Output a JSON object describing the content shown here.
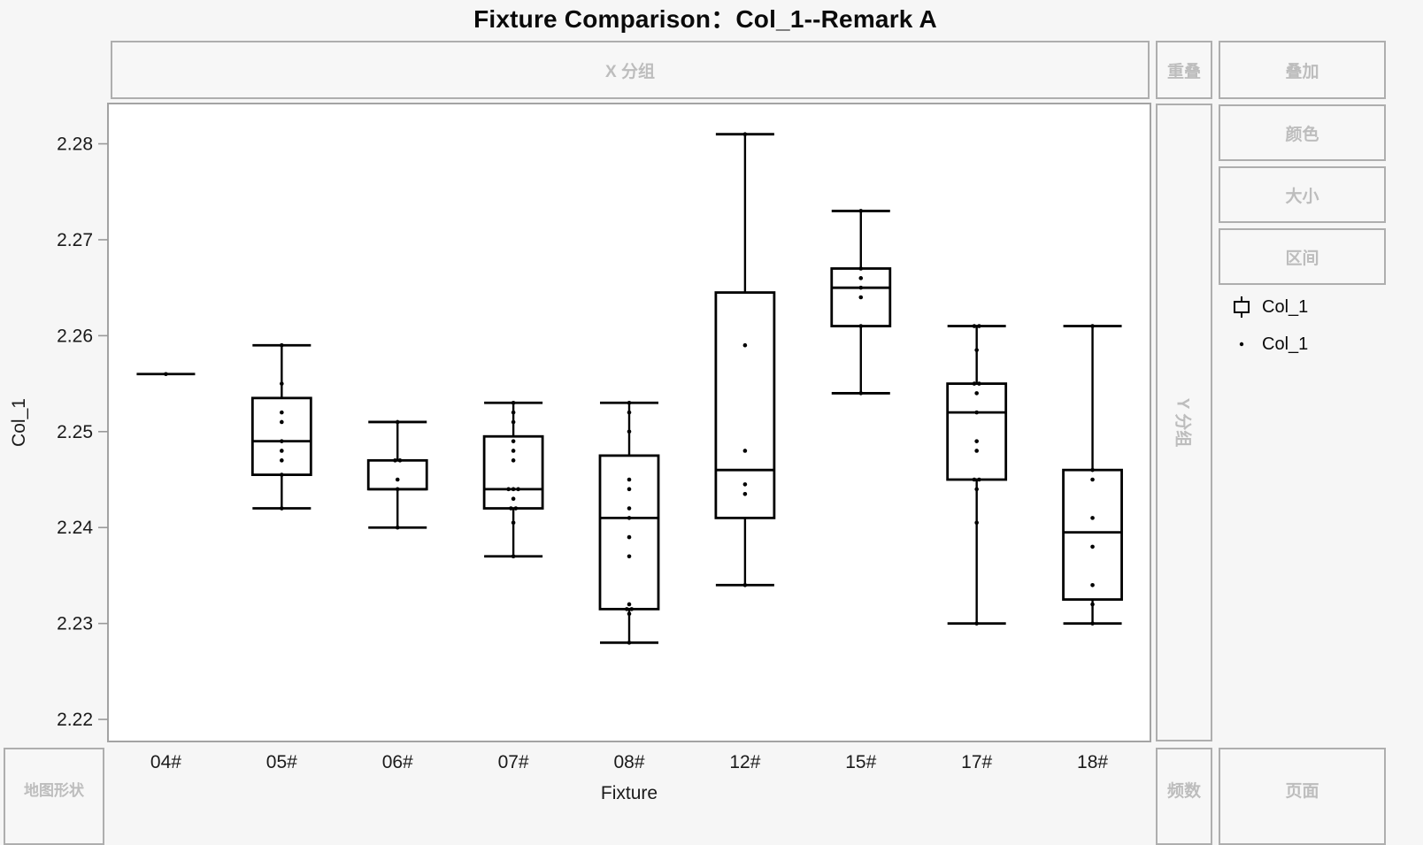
{
  "title": "Fixture Comparison：Col_1--Remark A",
  "drop_zones": {
    "x_group": "X 分组",
    "overlap": "重叠",
    "overlay": "叠加",
    "color": "颜色",
    "size": "大小",
    "interval": "区间",
    "y_group": "Y 分组",
    "frequency": "频数",
    "page": "页面",
    "map_shape": "地图形状"
  },
  "legend": [
    {
      "glyph": "box-plot",
      "label": "Col_1"
    },
    {
      "glyph": "point",
      "label": "Col_1"
    }
  ],
  "colors": {
    "background": "#f6f6f6",
    "plot_background": "#ffffff",
    "panel_border": "#aeaeae",
    "plot_border": "#a3a3a3",
    "zone_text": "#bdbdbd",
    "ink": "#000000",
    "tick": "#999999",
    "axis_text": "#1a1a1a"
  },
  "chart_data": {
    "type": "box",
    "title": "Fixture Comparison：Col_1--Remark A",
    "xlabel": "Fixture",
    "ylabel": "Col_1",
    "ylim": [
      2.2177,
      2.2842
    ],
    "yticks": [
      2.22,
      2.23,
      2.24,
      2.25,
      2.26,
      2.27,
      2.28
    ],
    "grid": false,
    "legend_position": "right",
    "categories": [
      "04#",
      "05#",
      "06#",
      "07#",
      "08#",
      "12#",
      "15#",
      "17#",
      "18#"
    ],
    "series": [
      {
        "category": "04#",
        "whisker_low": null,
        "q1": null,
        "median": 2.256,
        "q3": null,
        "whisker_high": null,
        "points": [
          2.256
        ]
      },
      {
        "category": "05#",
        "whisker_low": 2.242,
        "q1": 2.2455,
        "median": 2.249,
        "q3": 2.2535,
        "whisker_high": 2.259,
        "points": [
          2.259,
          2.255,
          2.252,
          2.251,
          2.249,
          2.248,
          2.247,
          2.2455,
          2.242
        ]
      },
      {
        "category": "06#",
        "whisker_low": 2.24,
        "q1": 2.244,
        "median": 2.244,
        "q3": 2.247,
        "whisker_high": 2.251,
        "points": [
          2.251,
          2.247,
          2.247,
          2.245,
          2.244,
          2.24
        ]
      },
      {
        "category": "07#",
        "whisker_low": 2.237,
        "q1": 2.242,
        "median": 2.244,
        "q3": 2.2495,
        "whisker_high": 2.253,
        "points": [
          2.253,
          2.252,
          2.251,
          2.249,
          2.248,
          2.247,
          2.244,
          2.244,
          2.244,
          2.243,
          2.242,
          2.242,
          2.2405,
          2.237
        ]
      },
      {
        "category": "08#",
        "whisker_low": 2.228,
        "q1": 2.2315,
        "median": 2.241,
        "q3": 2.2475,
        "whisker_high": 2.253,
        "points": [
          2.253,
          2.252,
          2.25,
          2.245,
          2.244,
          2.242,
          2.241,
          2.239,
          2.237,
          2.232,
          2.2315,
          2.2315,
          2.231,
          2.228
        ]
      },
      {
        "category": "12#",
        "whisker_low": 2.234,
        "q1": 2.241,
        "median": 2.246,
        "q3": 2.2645,
        "whisker_high": 2.281,
        "points": [
          2.281,
          2.259,
          2.248,
          2.2445,
          2.2435,
          2.234
        ]
      },
      {
        "category": "15#",
        "whisker_low": 2.254,
        "q1": 2.261,
        "median": 2.265,
        "q3": 2.267,
        "whisker_high": 2.273,
        "points": [
          2.273,
          2.267,
          2.266,
          2.265,
          2.264,
          2.261,
          2.254
        ]
      },
      {
        "category": "17#",
        "whisker_low": 2.23,
        "q1": 2.245,
        "median": 2.252,
        "q3": 2.255,
        "whisker_high": 2.261,
        "points": [
          2.261,
          2.261,
          2.2585,
          2.255,
          2.255,
          2.254,
          2.252,
          2.249,
          2.248,
          2.245,
          2.245,
          2.244,
          2.2405,
          2.23
        ]
      },
      {
        "category": "18#",
        "whisker_low": 2.23,
        "q1": 2.2325,
        "median": 2.2395,
        "q3": 2.246,
        "whisker_high": 2.261,
        "points": [
          2.261,
          2.246,
          2.245,
          2.241,
          2.238,
          2.234,
          2.232,
          2.23
        ]
      }
    ]
  }
}
